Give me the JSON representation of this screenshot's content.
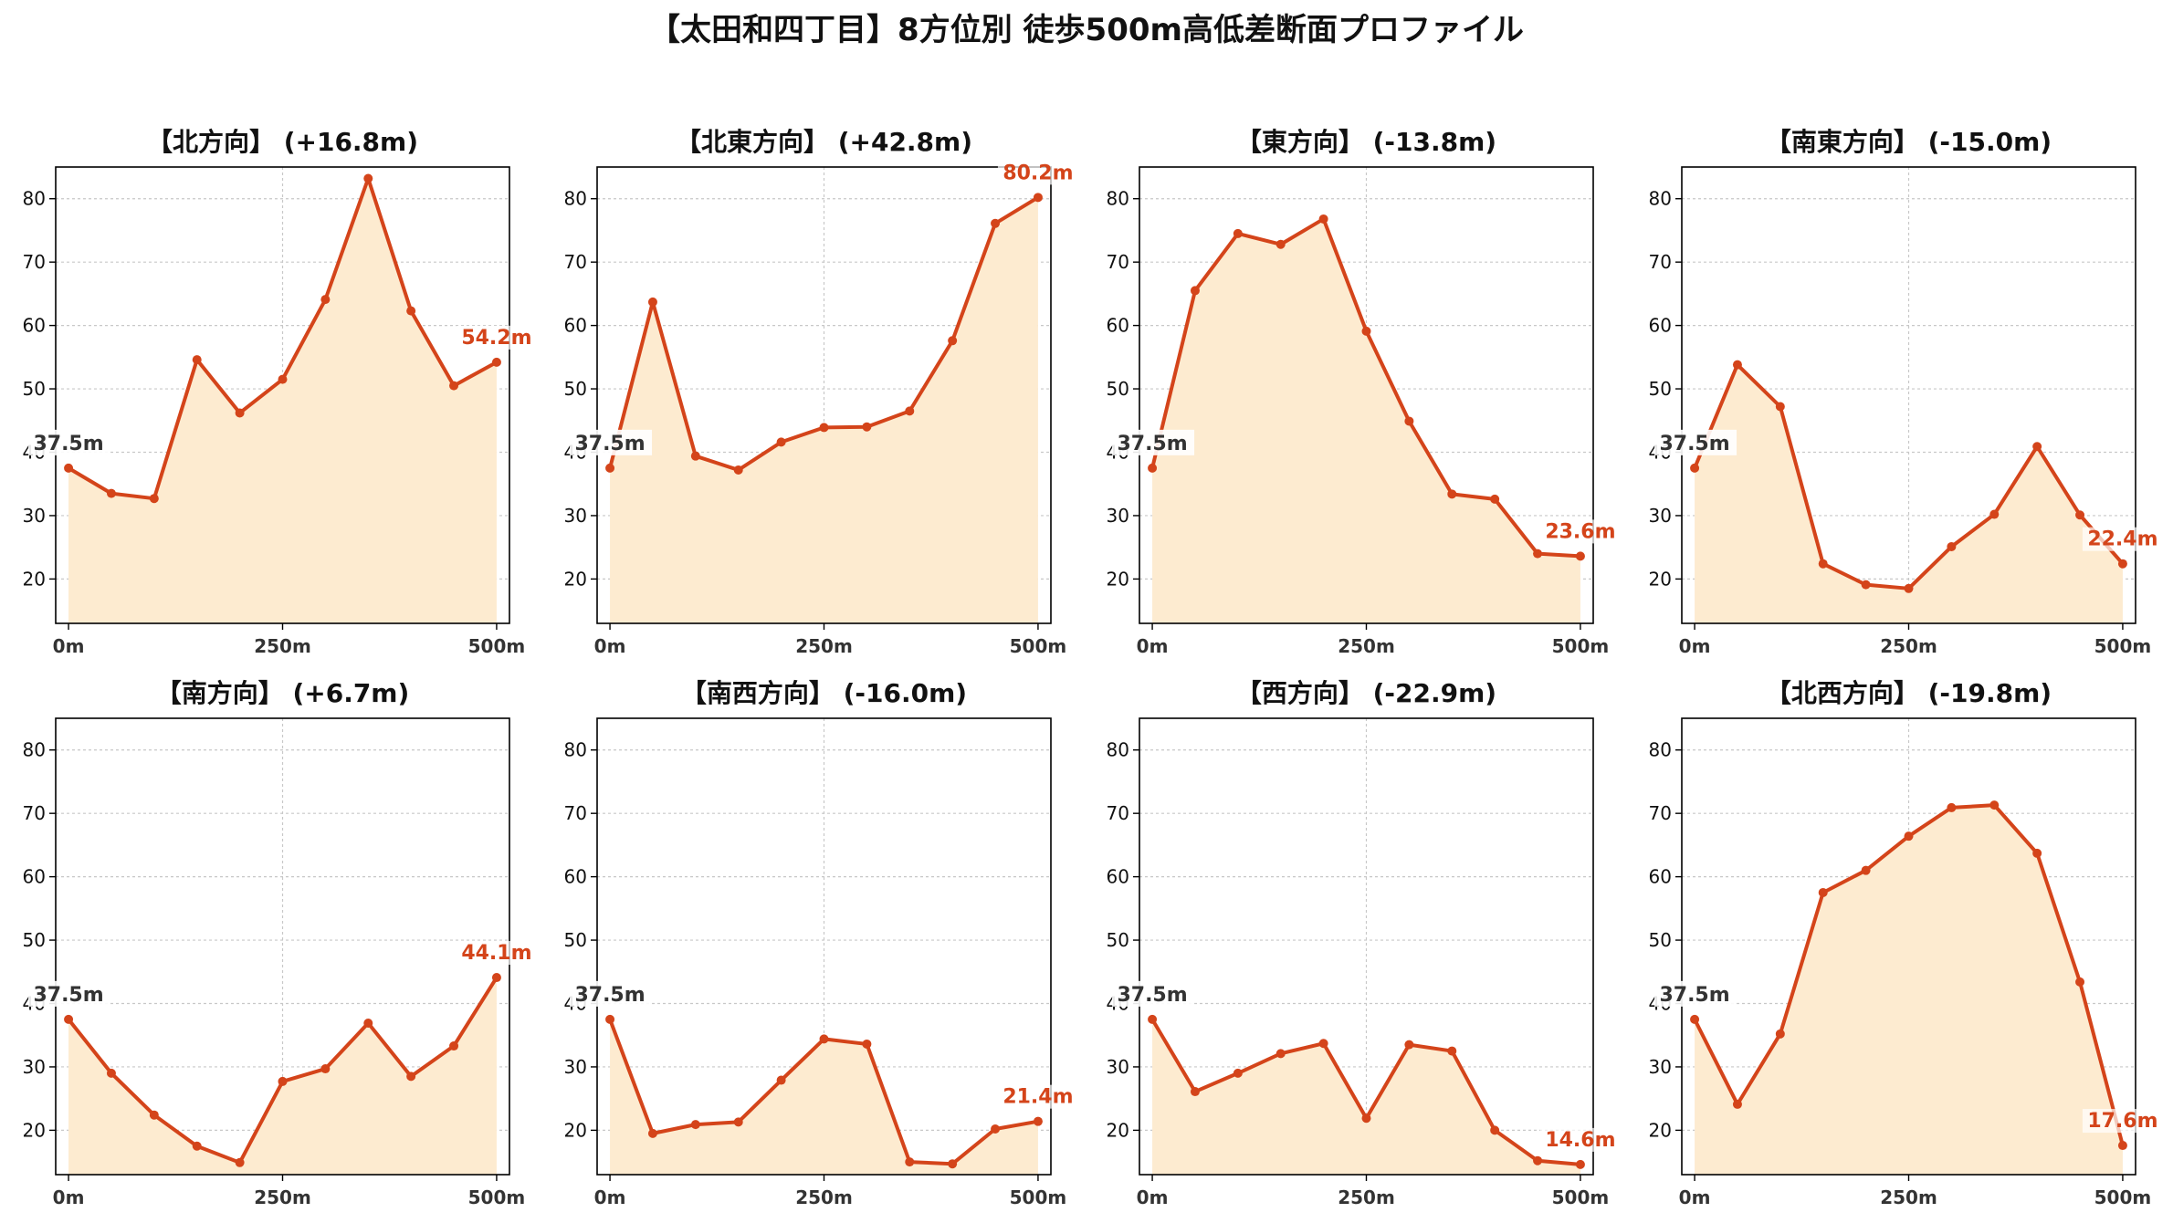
{
  "title": "【太田和四丁目】8方位別 徒歩500m高低差断面プロファイル",
  "colors": {
    "line": "#d4441a",
    "fill": "#fdebd0",
    "grid": "#c8c8c8",
    "start_label": "#333333",
    "end_label": "#d4441a"
  },
  "chart_data": [
    {
      "type": "area",
      "title": "【北方向】 (+16.8m)",
      "x": [
        0,
        50,
        100,
        150,
        200,
        250,
        300,
        350,
        400,
        450,
        500
      ],
      "x_ticks": [
        "0m",
        "250m",
        "500m"
      ],
      "y_ticks": [
        20,
        30,
        40,
        50,
        60,
        70,
        80
      ],
      "ylim": [
        13,
        85
      ],
      "xlim": [
        -15,
        515
      ],
      "grid": true,
      "values": [
        37.5,
        33.5,
        32.7,
        54.6,
        46.2,
        51.5,
        64.1,
        83.2,
        62.3,
        50.5,
        54.2
      ],
      "start_label": "37.5m",
      "end_label": "54.2m"
    },
    {
      "type": "area",
      "title": "【北東方向】 (+42.8m)",
      "x": [
        0,
        50,
        100,
        150,
        200,
        250,
        300,
        350,
        400,
        450,
        500
      ],
      "x_ticks": [
        "0m",
        "250m",
        "500m"
      ],
      "y_ticks": [
        20,
        30,
        40,
        50,
        60,
        70,
        80
      ],
      "ylim": [
        13,
        85
      ],
      "xlim": [
        -15,
        515
      ],
      "grid": true,
      "values": [
        37.5,
        63.7,
        39.4,
        37.2,
        41.6,
        43.9,
        44.0,
        46.5,
        57.6,
        76.1,
        80.2
      ],
      "start_label": "37.5m",
      "end_label": "80.2m"
    },
    {
      "type": "area",
      "title": "【東方向】 (-13.8m)",
      "x": [
        0,
        50,
        100,
        150,
        200,
        250,
        300,
        350,
        400,
        450,
        500
      ],
      "x_ticks": [
        "0m",
        "250m",
        "500m"
      ],
      "y_ticks": [
        20,
        30,
        40,
        50,
        60,
        70,
        80
      ],
      "ylim": [
        13,
        85
      ],
      "xlim": [
        -15,
        515
      ],
      "grid": true,
      "values": [
        37.5,
        65.5,
        74.5,
        72.8,
        76.8,
        59.1,
        44.9,
        33.4,
        32.6,
        24.0,
        23.6
      ],
      "start_label": "37.5m",
      "end_label": "23.6m"
    },
    {
      "type": "area",
      "title": "【南東方向】 (-15.0m)",
      "x": [
        0,
        50,
        100,
        150,
        200,
        250,
        300,
        350,
        400,
        450,
        500
      ],
      "x_ticks": [
        "0m",
        "250m",
        "500m"
      ],
      "y_ticks": [
        20,
        30,
        40,
        50,
        60,
        70,
        80
      ],
      "ylim": [
        13,
        85
      ],
      "xlim": [
        -15,
        515
      ],
      "grid": true,
      "values": [
        37.5,
        53.8,
        47.2,
        22.4,
        19.1,
        18.5,
        25.1,
        30.2,
        40.9,
        30.1,
        22.4
      ],
      "start_label": "37.5m",
      "end_label": "22.4m"
    },
    {
      "type": "area",
      "title": "【南方向】 (+6.7m)",
      "x": [
        0,
        50,
        100,
        150,
        200,
        250,
        300,
        350,
        400,
        450,
        500
      ],
      "x_ticks": [
        "0m",
        "250m",
        "500m"
      ],
      "y_ticks": [
        20,
        30,
        40,
        50,
        60,
        70,
        80
      ],
      "ylim": [
        13,
        85
      ],
      "xlim": [
        -15,
        515
      ],
      "grid": true,
      "values": [
        37.5,
        29.0,
        22.4,
        17.5,
        14.9,
        27.7,
        29.7,
        36.9,
        28.5,
        33.3,
        44.1
      ],
      "start_label": "37.5m",
      "end_label": "44.1m"
    },
    {
      "type": "area",
      "title": "【南西方向】 (-16.0m)",
      "x": [
        0,
        50,
        100,
        150,
        200,
        250,
        300,
        350,
        400,
        450,
        500
      ],
      "x_ticks": [
        "0m",
        "250m",
        "500m"
      ],
      "y_ticks": [
        20,
        30,
        40,
        50,
        60,
        70,
        80
      ],
      "ylim": [
        13,
        85
      ],
      "xlim": [
        -15,
        515
      ],
      "grid": true,
      "values": [
        37.5,
        19.5,
        20.9,
        21.3,
        27.9,
        34.4,
        33.6,
        15.0,
        14.7,
        20.2,
        21.4
      ],
      "start_label": "37.5m",
      "end_label": "21.4m"
    },
    {
      "type": "area",
      "title": "【西方向】 (-22.9m)",
      "x": [
        0,
        50,
        100,
        150,
        200,
        250,
        300,
        350,
        400,
        450,
        500
      ],
      "x_ticks": [
        "0m",
        "250m",
        "500m"
      ],
      "y_ticks": [
        20,
        30,
        40,
        50,
        60,
        70,
        80
      ],
      "ylim": [
        13,
        85
      ],
      "xlim": [
        -15,
        515
      ],
      "grid": true,
      "values": [
        37.5,
        26.1,
        29.0,
        32.1,
        33.7,
        21.9,
        33.5,
        32.5,
        20.0,
        15.2,
        14.6
      ],
      "start_label": "37.5m",
      "end_label": "14.6m"
    },
    {
      "type": "area",
      "title": "【北西方向】 (-19.8m)",
      "x": [
        0,
        50,
        100,
        150,
        200,
        250,
        300,
        350,
        400,
        450,
        500
      ],
      "x_ticks": [
        "0m",
        "250m",
        "500m"
      ],
      "y_ticks": [
        20,
        30,
        40,
        50,
        60,
        70,
        80
      ],
      "ylim": [
        13,
        85
      ],
      "xlim": [
        -15,
        515
      ],
      "grid": true,
      "values": [
        37.5,
        24.1,
        35.2,
        57.5,
        61.0,
        66.4,
        70.9,
        71.3,
        63.7,
        43.4,
        17.6
      ],
      "start_label": "37.5m",
      "end_label": "17.6m"
    }
  ]
}
